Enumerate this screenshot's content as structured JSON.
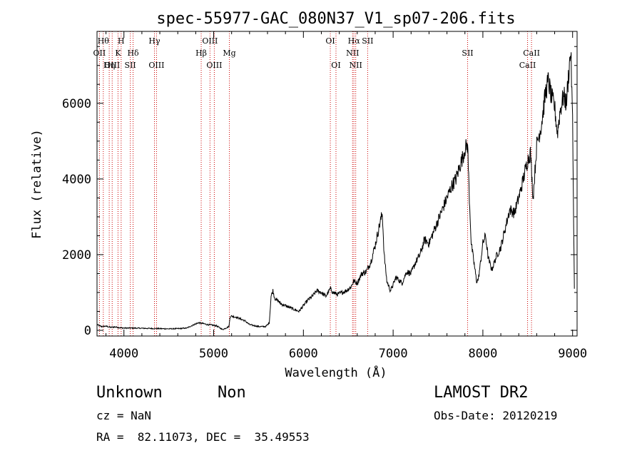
{
  "chart_data": {
    "type": "line",
    "title": "spec-55977-GAC_080N37_V1_sp07-206.fits",
    "xlabel": "Wavelength (Å)",
    "ylabel": "Flux (relative)",
    "xlim": [
      3700,
      9050
    ],
    "ylim": [
      -150,
      7900
    ],
    "xticks": [
      4000,
      5000,
      6000,
      7000,
      8000,
      9000
    ],
    "yticks": [
      0,
      2000,
      4000,
      6000
    ],
    "grid": false,
    "series": [
      {
        "x": [
          3700,
          3750,
          3800,
          3850,
          3900,
          3950,
          4000,
          4100,
          4200,
          4300,
          4400,
          4500,
          4600,
          4700,
          4780,
          4830,
          4880,
          4930,
          4980,
          5030,
          5100,
          5170,
          5185,
          5250,
          5300,
          5350,
          5400,
          5500,
          5580,
          5620,
          5640,
          5660,
          5680,
          5700,
          5720,
          5750,
          5800,
          5850,
          5900,
          5950,
          6000,
          6050,
          6100,
          6150,
          6200,
          6250,
          6300,
          6330,
          6380,
          6430,
          6480,
          6530,
          6560,
          6600,
          6650,
          6700,
          6750,
          6800,
          6850,
          6880,
          6900,
          6930,
          6970,
          7000,
          7030,
          7100,
          7150,
          7200,
          7250,
          7300,
          7350,
          7400,
          7450,
          7500,
          7550,
          7600,
          7650,
          7700,
          7750,
          7780,
          7800,
          7830,
          7850,
          7870,
          7900,
          7930,
          7950,
          7980,
          8000,
          8030,
          8060,
          8100,
          8150,
          8200,
          8250,
          8300,
          8350,
          8400,
          8450,
          8500,
          8530,
          8560,
          8600,
          8650,
          8700,
          8730,
          8760,
          8800,
          8830,
          8860,
          8900,
          8930,
          8960,
          8980,
          9000,
          9020
        ],
        "y": [
          150,
          100,
          110,
          80,
          90,
          70,
          60,
          60,
          55,
          50,
          45,
          40,
          45,
          60,
          150,
          200,
          180,
          150,
          140,
          120,
          20,
          100,
          380,
          350,
          300,
          250,
          150,
          100,
          100,
          200,
          900,
          1050,
          850,
          800,
          780,
          700,
          650,
          600,
          550,
          500,
          650,
          800,
          900,
          1050,
          1000,
          900,
          1100,
          1000,
          950,
          1000,
          1050,
          1150,
          1300,
          1250,
          1500,
          1550,
          1800,
          2250,
          2800,
          3100,
          2000,
          1300,
          1050,
          1200,
          1400,
          1250,
          1550,
          1500,
          1800,
          2000,
          2400,
          2300,
          2600,
          2900,
          3200,
          3500,
          3800,
          4000,
          4400,
          4600,
          4800,
          4900,
          3500,
          2300,
          1800,
          1300,
          1350,
          1900,
          2300,
          2500,
          1900,
          1600,
          1950,
          2200,
          2700,
          3200,
          3100,
          3500,
          4000,
          4500,
          4700,
          3500,
          4900,
          5400,
          6300,
          6600,
          6200,
          5900,
          5200,
          5800,
          6200,
          6000,
          6900,
          7400,
          5500,
          1100
        ]
      }
    ],
    "lines": [
      {
        "x": 3727,
        "label": "OII",
        "row": 3
      },
      {
        "x": 3770,
        "label": "Hθ",
        "row": 1
      },
      {
        "x": 3836,
        "label": "Hη",
        "row": 4
      },
      {
        "x": 3869,
        "label": "OIII",
        "row": 4
      },
      {
        "x": 3934,
        "label": "K",
        "row": 2
      },
      {
        "x": 3969,
        "label": "H",
        "row": 1
      },
      {
        "x": 4071,
        "label": "SII",
        "row": 4
      },
      {
        "x": 4102,
        "label": "Hδ",
        "row": 2
      },
      {
        "x": 4340,
        "label": "Hγ",
        "row": 1
      },
      {
        "x": 4363,
        "label": "OIII",
        "row": 4
      },
      {
        "x": 4861,
        "label": "Hβ",
        "row": 2
      },
      {
        "x": 4959,
        "label": "OIII",
        "row": 1
      },
      {
        "x": 5007,
        "label": "OIII",
        "row": 4
      },
      {
        "x": 5175,
        "label": "Mg",
        "row": 2
      },
      {
        "x": 6300,
        "label": "OI",
        "row": 1
      },
      {
        "x": 6363,
        "label": "OI",
        "row": 4
      },
      {
        "x": 6548,
        "label": "NII",
        "row": 3
      },
      {
        "x": 6563,
        "label": "Hα",
        "row": 1
      },
      {
        "x": 6583,
        "label": "NII",
        "row": 4
      },
      {
        "x": 6716,
        "label": "SII",
        "row": 1
      },
      {
        "x": 7830,
        "label": "SII",
        "row": 2
      },
      {
        "x": 8498,
        "label": "CaII",
        "row": 4
      },
      {
        "x": 8542,
        "label": "CaII",
        "row": 2
      }
    ]
  },
  "info": {
    "class_label": "Unknown",
    "subclass_label": "Non",
    "survey_label": "LAMOST DR2",
    "cz_text": "cz = NaN",
    "obs_date_text": "Obs-Date: 20120219",
    "coords_text": "RA =  82.11073, DEC =  35.49553"
  }
}
